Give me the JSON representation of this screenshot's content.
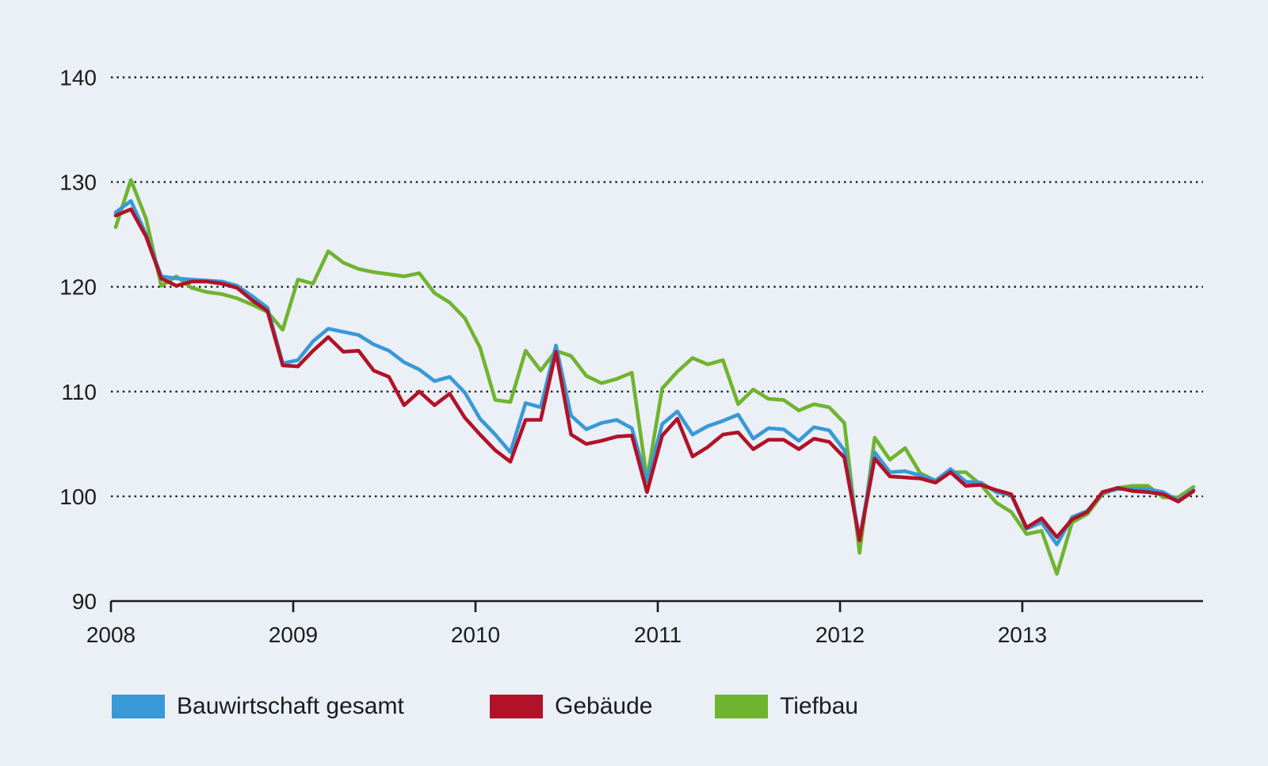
{
  "page": {
    "background": "#ebeff6",
    "text_color": "#1c1c1c"
  },
  "chart_data": {
    "type": "line",
    "title": "",
    "x_unit": "month",
    "x_start": "2008-01",
    "x_end": "2013-12",
    "x_tick_labels": [
      "2008",
      "2009",
      "2010",
      "2011",
      "2012",
      "2013"
    ],
    "y_ticks": [
      90,
      100,
      110,
      120,
      130,
      140
    ],
    "ylim": [
      90,
      145
    ],
    "grid": "horizontal dotted lines at 100-140, solid baseline at 90",
    "legend_position": "bottom",
    "background": "#ebeff6",
    "axis_color": "#1c1c1c",
    "grid_color": "#1c1c1c",
    "series": [
      {
        "name": "Bauwirtschaft gesamt",
        "color": "#3899d7",
        "values": [
          127.1,
          128.2,
          125.0,
          121.0,
          120.8,
          120.7,
          120.6,
          120.5,
          120.1,
          119.1,
          118.0,
          112.7,
          113.0,
          114.8,
          116.0,
          115.7,
          115.4,
          114.5,
          113.9,
          112.8,
          112.1,
          111.0,
          111.4,
          109.9,
          107.4,
          105.9,
          104.2,
          108.9,
          108.5,
          114.4,
          107.7,
          106.4,
          107.0,
          107.3,
          106.5,
          101.4,
          106.9,
          108.1,
          105.9,
          106.7,
          107.2,
          107.8,
          105.5,
          106.5,
          106.4,
          105.3,
          106.6,
          106.3,
          104.4,
          95.9,
          104.2,
          102.3,
          102.4,
          102.0,
          101.5,
          102.6,
          101.4,
          101.3,
          100.4,
          100.1,
          96.9,
          97.5,
          95.4,
          98.0,
          98.6,
          100.3,
          100.7,
          100.7,
          100.7,
          100.4,
          99.6,
          100.6
        ]
      },
      {
        "name": "Gebäude",
        "color": "#b11227",
        "values": [
          126.8,
          127.4,
          124.8,
          120.8,
          120.1,
          120.5,
          120.5,
          120.3,
          119.9,
          118.7,
          117.7,
          112.5,
          112.4,
          113.9,
          115.2,
          113.8,
          113.9,
          112.0,
          111.4,
          108.7,
          110.0,
          108.7,
          109.8,
          107.5,
          105.9,
          104.4,
          103.3,
          107.3,
          107.3,
          113.8,
          105.9,
          105.0,
          105.3,
          105.7,
          105.8,
          100.4,
          105.8,
          107.4,
          103.8,
          104.7,
          105.9,
          106.1,
          104.5,
          105.4,
          105.4,
          104.5,
          105.5,
          105.2,
          103.7,
          95.8,
          103.6,
          101.9,
          101.8,
          101.7,
          101.3,
          102.3,
          101.0,
          101.1,
          100.6,
          100.2,
          97.0,
          97.9,
          96.1,
          97.8,
          98.5,
          100.4,
          100.8,
          100.5,
          100.4,
          100.2,
          99.5,
          100.5
        ]
      },
      {
        "name": "Tiefbau",
        "color": "#6fb42e",
        "values": [
          125.7,
          130.2,
          126.5,
          120.1,
          121.0,
          119.9,
          119.5,
          119.3,
          118.9,
          118.3,
          117.6,
          115.9,
          120.7,
          120.3,
          123.4,
          122.3,
          121.7,
          121.4,
          121.2,
          121.0,
          121.3,
          119.4,
          118.5,
          117.0,
          114.2,
          109.2,
          109.0,
          113.9,
          112.0,
          113.9,
          113.4,
          111.5,
          110.8,
          111.2,
          111.8,
          101.6,
          110.3,
          111.9,
          113.2,
          112.6,
          113.0,
          108.8,
          110.2,
          109.3,
          109.2,
          108.2,
          108.8,
          108.5,
          107.0,
          94.6,
          105.6,
          103.5,
          104.6,
          102.2,
          101.5,
          102.3,
          102.3,
          101.1,
          99.4,
          98.5,
          96.4,
          96.7,
          92.6,
          97.5,
          98.3,
          100.2,
          100.8,
          101.0,
          101.0,
          99.9,
          99.9,
          100.9
        ]
      }
    ]
  }
}
